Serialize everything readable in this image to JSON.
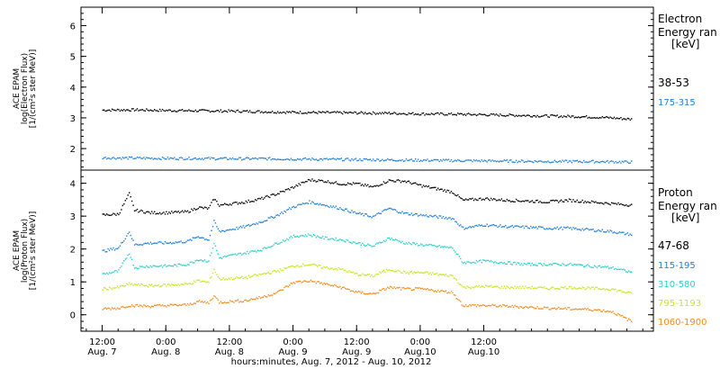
{
  "chart_data": [
    {
      "panel": "electron",
      "type": "scatter",
      "ylabel": [
        "ACE EPAM",
        "log(Electron Flux)",
        "[1/(cm²s ster MeV)]"
      ],
      "ylim": [
        1.3,
        6.6
      ],
      "yticks": [
        2,
        3,
        4,
        5,
        6
      ],
      "ytick_labels": [
        "2",
        "3",
        "4",
        "5",
        "6"
      ],
      "legend_title": [
        "Electron",
        "Energy ran",
        "[keV]"
      ],
      "series": [
        {
          "name": "38-53",
          "color": "#000000",
          "points": [
            [
              0,
              3.27
            ],
            [
              6,
              3.28
            ],
            [
              12,
              3.26
            ],
            [
              18,
              3.25
            ],
            [
              24,
              3.24
            ],
            [
              30,
              3.22
            ],
            [
              36,
              3.2
            ],
            [
              42,
              3.19
            ],
            [
              48,
              3.18
            ],
            [
              54,
              3.17
            ],
            [
              60,
              3.15
            ],
            [
              66,
              3.14
            ],
            [
              72,
              3.12
            ],
            [
              78,
              3.1
            ],
            [
              84,
              3.08
            ],
            [
              90,
              3.06
            ],
            [
              96,
              3.02
            ],
            [
              100,
              2.97
            ]
          ]
        },
        {
          "name": "175-315",
          "color": "#1f7fd8",
          "points": [
            [
              0,
              1.72
            ],
            [
              6,
              1.71
            ],
            [
              12,
              1.7
            ],
            [
              18,
              1.7
            ],
            [
              24,
              1.69
            ],
            [
              30,
              1.69
            ],
            [
              36,
              1.68
            ],
            [
              42,
              1.67
            ],
            [
              48,
              1.66
            ],
            [
              54,
              1.65
            ],
            [
              60,
              1.64
            ],
            [
              66,
              1.63
            ],
            [
              72,
              1.62
            ],
            [
              78,
              1.61
            ],
            [
              84,
              1.6
            ],
            [
              90,
              1.6
            ],
            [
              96,
              1.59
            ],
            [
              100,
              1.58
            ]
          ]
        }
      ]
    },
    {
      "panel": "proton",
      "type": "scatter",
      "ylabel": [
        "ACE EPAM",
        "log(Proton Flux)",
        "[1/(cm²s ster MeV)]"
      ],
      "ylim": [
        -0.5,
        4.4
      ],
      "yticks": [
        0,
        1,
        2,
        3,
        4
      ],
      "ytick_labels": [
        "0",
        "1",
        "2",
        "3",
        "4"
      ],
      "legend_title": [
        "Proton",
        "Energy ran",
        "[keV]"
      ],
      "series": [
        {
          "name": "47-68",
          "color": "#000000",
          "points": [
            [
              0,
              3.05
            ],
            [
              3,
              3.08
            ],
            [
              5,
              3.7
            ],
            [
              6,
              3.2
            ],
            [
              9,
              3.12
            ],
            [
              12,
              3.12
            ],
            [
              16,
              3.15
            ],
            [
              18,
              3.28
            ],
            [
              20,
              3.25
            ],
            [
              21,
              3.55
            ],
            [
              22,
              3.35
            ],
            [
              27,
              3.45
            ],
            [
              30,
              3.55
            ],
            [
              33,
              3.7
            ],
            [
              36,
              3.9
            ],
            [
              39,
              4.12
            ],
            [
              42,
              4.08
            ],
            [
              45,
              4.0
            ],
            [
              48,
              4.0
            ],
            [
              51,
              3.9
            ],
            [
              54,
              4.1
            ],
            [
              57,
              4.08
            ],
            [
              60,
              3.95
            ],
            [
              63,
              3.85
            ],
            [
              66,
              3.75
            ],
            [
              68,
              3.5
            ],
            [
              72,
              3.55
            ],
            [
              76,
              3.5
            ],
            [
              80,
              3.48
            ],
            [
              84,
              3.45
            ],
            [
              88,
              3.5
            ],
            [
              92,
              3.45
            ],
            [
              96,
              3.4
            ],
            [
              100,
              3.35
            ]
          ]
        },
        {
          "name": "115-195",
          "color": "#1f7fd8",
          "points": [
            [
              0,
              1.95
            ],
            [
              3,
              2.05
            ],
            [
              5,
              2.55
            ],
            [
              6,
              2.15
            ],
            [
              9,
              2.2
            ],
            [
              12,
              2.2
            ],
            [
              16,
              2.25
            ],
            [
              18,
              2.4
            ],
            [
              20,
              2.3
            ],
            [
              21,
              2.85
            ],
            [
              22,
              2.55
            ],
            [
              27,
              2.7
            ],
            [
              30,
              2.85
            ],
            [
              33,
              3.05
            ],
            [
              36,
              3.3
            ],
            [
              39,
              3.45
            ],
            [
              42,
              3.35
            ],
            [
              45,
              3.25
            ],
            [
              48,
              3.1
            ],
            [
              51,
              3.0
            ],
            [
              54,
              3.25
            ],
            [
              57,
              3.1
            ],
            [
              60,
              3.05
            ],
            [
              63,
              3.0
            ],
            [
              66,
              2.95
            ],
            [
              68,
              2.65
            ],
            [
              72,
              2.75
            ],
            [
              76,
              2.7
            ],
            [
              80,
              2.68
            ],
            [
              84,
              2.65
            ],
            [
              88,
              2.65
            ],
            [
              92,
              2.6
            ],
            [
              96,
              2.55
            ],
            [
              100,
              2.45
            ]
          ]
        },
        {
          "name": "310-580",
          "color": "#28d2c8",
          "points": [
            [
              0,
              1.25
            ],
            [
              3,
              1.35
            ],
            [
              5,
              1.9
            ],
            [
              6,
              1.45
            ],
            [
              9,
              1.5
            ],
            [
              12,
              1.5
            ],
            [
              16,
              1.55
            ],
            [
              18,
              1.7
            ],
            [
              20,
              1.65
            ],
            [
              21,
              2.2
            ],
            [
              22,
              1.75
            ],
            [
              27,
              1.9
            ],
            [
              30,
              2.0
            ],
            [
              33,
              2.2
            ],
            [
              36,
              2.4
            ],
            [
              39,
              2.45
            ],
            [
              42,
              2.35
            ],
            [
              45,
              2.3
            ],
            [
              48,
              2.2
            ],
            [
              51,
              2.1
            ],
            [
              54,
              2.35
            ],
            [
              57,
              2.2
            ],
            [
              60,
              2.15
            ],
            [
              63,
              2.1
            ],
            [
              66,
              2.05
            ],
            [
              68,
              1.6
            ],
            [
              72,
              1.65
            ],
            [
              76,
              1.6
            ],
            [
              80,
              1.55
            ],
            [
              84,
              1.55
            ],
            [
              88,
              1.55
            ],
            [
              92,
              1.5
            ],
            [
              96,
              1.45
            ],
            [
              100,
              1.3
            ]
          ]
        },
        {
          "name": "795-1193",
          "color": "#c8e61e",
          "points": [
            [
              0,
              0.8
            ],
            [
              3,
              0.85
            ],
            [
              5,
              0.95
            ],
            [
              9,
              0.9
            ],
            [
              12,
              0.92
            ],
            [
              16,
              0.95
            ],
            [
              18,
              1.05
            ],
            [
              20,
              1.0
            ],
            [
              21,
              1.4
            ],
            [
              22,
              1.1
            ],
            [
              27,
              1.15
            ],
            [
              30,
              1.25
            ],
            [
              33,
              1.35
            ],
            [
              36,
              1.5
            ],
            [
              39,
              1.55
            ],
            [
              42,
              1.45
            ],
            [
              45,
              1.4
            ],
            [
              48,
              1.25
            ],
            [
              51,
              1.2
            ],
            [
              54,
              1.4
            ],
            [
              57,
              1.3
            ],
            [
              60,
              1.3
            ],
            [
              63,
              1.25
            ],
            [
              66,
              1.2
            ],
            [
              68,
              0.85
            ],
            [
              72,
              0.88
            ],
            [
              76,
              0.85
            ],
            [
              80,
              0.85
            ],
            [
              84,
              0.82
            ],
            [
              88,
              0.85
            ],
            [
              92,
              0.82
            ],
            [
              96,
              0.8
            ],
            [
              100,
              0.65
            ]
          ]
        },
        {
          "name": "1060-1900",
          "color": "#f08a1e",
          "points": [
            [
              0,
              0.2
            ],
            [
              3,
              0.22
            ],
            [
              5,
              0.3
            ],
            [
              9,
              0.28
            ],
            [
              12,
              0.3
            ],
            [
              16,
              0.32
            ],
            [
              18,
              0.42
            ],
            [
              20,
              0.38
            ],
            [
              21,
              0.6
            ],
            [
              22,
              0.4
            ],
            [
              27,
              0.45
            ],
            [
              30,
              0.55
            ],
            [
              33,
              0.7
            ],
            [
              36,
              1.0
            ],
            [
              39,
              1.05
            ],
            [
              42,
              0.95
            ],
            [
              45,
              0.85
            ],
            [
              48,
              0.7
            ],
            [
              51,
              0.65
            ],
            [
              54,
              0.85
            ],
            [
              57,
              0.8
            ],
            [
              60,
              0.8
            ],
            [
              63,
              0.75
            ],
            [
              66,
              0.7
            ],
            [
              68,
              0.3
            ],
            [
              72,
              0.3
            ],
            [
              76,
              0.28
            ],
            [
              80,
              0.25
            ],
            [
              84,
              0.22
            ],
            [
              88,
              0.2
            ],
            [
              92,
              0.18
            ],
            [
              96,
              0.12
            ],
            [
              100,
              -0.2
            ]
          ]
        }
      ]
    }
  ],
  "x_axis": {
    "range_hours": [
      -4,
      104
    ],
    "ticks": [
      {
        "hour": 0,
        "time": "12:00",
        "date": "Aug. 7"
      },
      {
        "hour": 12,
        "time": "0:00",
        "date": "Aug. 8"
      },
      {
        "hour": 24,
        "time": "12:00",
        "date": "Aug. 8"
      },
      {
        "hour": 36,
        "time": "0:00",
        "date": "Aug. 9"
      },
      {
        "hour": 48,
        "time": "12:00",
        "date": "Aug. 9"
      },
      {
        "hour": 60,
        "time": "0:00",
        "date": "Aug.10"
      },
      {
        "hour": 72,
        "time": "12:00",
        "date": "Aug.10"
      }
    ],
    "label": "hours:minutes, Aug.  7, 2012 - Aug. 10, 2012"
  }
}
